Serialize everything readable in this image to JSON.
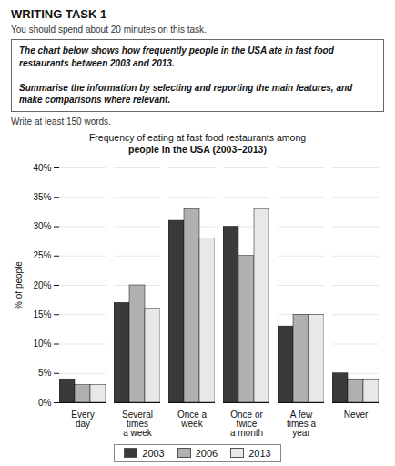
{
  "chart_data": {
    "type": "bar",
    "title": "Frequency of eating at fast food restaurants among\npeople in the USA (2003–2013)",
    "annotations": [
      "WRITING TASK 1",
      "You should spend about 20 minutes on this task.",
      "The chart below shows how frequently people in the USA ate in fast food\nrestaurants between 2003 and 2013.\n\nSummarise the information by selecting and reporting the main features, and\nmake comparisons where relevant.",
      "Write at least 150 words."
    ],
    "categories": [
      "Every\nday",
      "Several\ntimes\na week",
      "Once a\nweek",
      "Once or\ntwice\na month",
      "A few\ntimes a\nyear",
      "Never"
    ],
    "series": [
      {
        "name": "2003",
        "color": "#3a3a3a",
        "values": [
          4,
          17,
          31,
          30,
          13,
          5
        ]
      },
      {
        "name": "2006",
        "color": "#b0b0b0",
        "values": [
          3,
          20,
          33,
          25,
          15,
          4
        ]
      },
      {
        "name": "2013",
        "color": "#e8e8e8",
        "values": [
          3,
          16,
          28,
          33,
          15,
          4
        ]
      }
    ],
    "ylabel": "% of people",
    "ylim": [
      0,
      40
    ],
    "yticks": [
      {
        "value": 0,
        "label": "0%"
      },
      {
        "value": 5,
        "label": "5%"
      },
      {
        "value": 10,
        "label": "10%"
      },
      {
        "value": 15,
        "label": "15%"
      },
      {
        "value": 20,
        "label": "20%"
      },
      {
        "value": 25,
        "label": "25%"
      },
      {
        "value": 30,
        "label": "30%"
      },
      {
        "value": 35,
        "label": "35%"
      },
      {
        "value": 40,
        "label": "40%"
      }
    ],
    "grid": true,
    "legend": "bottom"
  }
}
